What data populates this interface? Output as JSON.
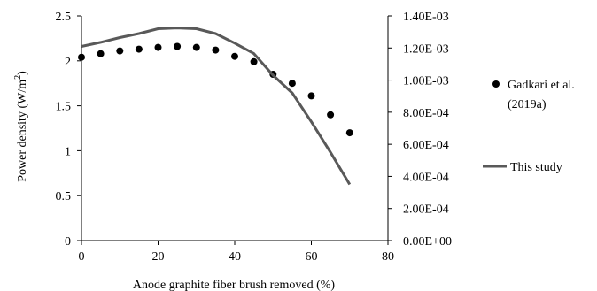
{
  "chart_data": {
    "type": "line",
    "xlabel": "Anode graphite fiber brush removed (%)",
    "ylabel": "Power density  (W/m",
    "ylabel_sup": "2",
    "ylabel_close": ")",
    "xlim": [
      0,
      80
    ],
    "ylim": [
      0,
      2.5
    ],
    "y2lim": [
      0,
      0.0014
    ],
    "x_ticks": [
      0,
      20,
      40,
      60,
      80
    ],
    "x_tick_labels": [
      "0",
      "20",
      "40",
      "60",
      "80"
    ],
    "y_ticks": [
      0,
      0.5,
      1,
      1.5,
      2,
      2.5
    ],
    "y_tick_labels": [
      "0",
      "0.5",
      "1",
      "1.5",
      "2",
      "2.5"
    ],
    "y2_ticks": [
      0,
      0.0002,
      0.0004,
      0.0006,
      0.0008,
      0.001,
      0.0012,
      0.0014
    ],
    "y2_tick_labels": [
      "0.00E+00",
      "2.00E-04",
      "4.00E-04",
      "6.00E-04",
      "8.00E-04",
      "1.00E-03",
      "1.20E-03",
      "1.40E-03"
    ],
    "grid": false,
    "legend_position": "right",
    "series": [
      {
        "name": "Gadkari et al. (2019a)",
        "legend_lines": [
          "Gadkari et al.",
          "(2019a)"
        ],
        "type": "scatter",
        "axis": "left",
        "color": "#000000",
        "x": [
          0,
          5,
          10,
          15,
          20,
          25,
          30,
          35,
          40,
          45,
          50,
          55,
          60,
          65,
          70
        ],
        "values": [
          2.04,
          2.08,
          2.11,
          2.13,
          2.15,
          2.16,
          2.15,
          2.12,
          2.05,
          1.99,
          1.85,
          1.75,
          1.61,
          1.4,
          1.2
        ]
      },
      {
        "name": "This study",
        "legend_lines": [
          "This study"
        ],
        "type": "line",
        "axis": "right",
        "color": "#595959",
        "x": [
          0,
          5,
          10,
          15,
          20,
          25,
          30,
          35,
          40,
          45,
          50,
          55,
          60,
          65,
          70
        ],
        "values": [
          0.00121,
          0.001235,
          0.001265,
          0.00129,
          0.00132,
          0.001325,
          0.00132,
          0.00129,
          0.00123,
          0.001165,
          0.00103,
          0.00092,
          0.00074,
          0.00055,
          0.00035
        ]
      }
    ]
  }
}
